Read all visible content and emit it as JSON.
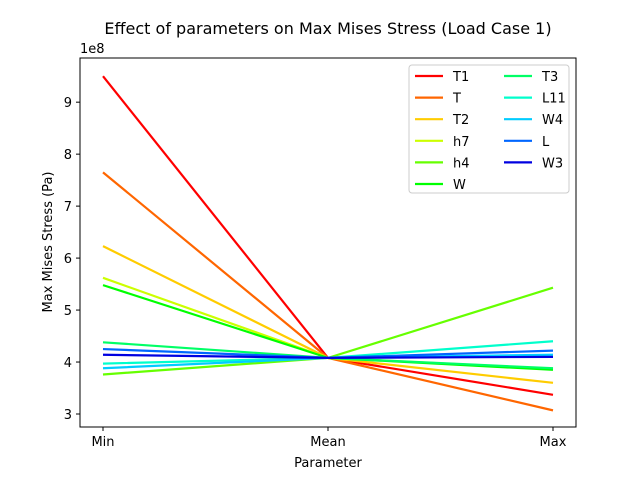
{
  "chart_data": {
    "type": "line",
    "title": "Effect of parameters on Max Mises Stress (Load Case 1)",
    "xlabel": "Parameter",
    "ylabel": "Max Mises Stress (Pa)",
    "y_scale_label": "1e8",
    "categories": [
      "Min",
      "Mean",
      "Max"
    ],
    "ylim": [
      2.75,
      9.85
    ],
    "yticks": [
      "3",
      "4",
      "5",
      "6",
      "7",
      "8",
      "9"
    ],
    "legend_position": "upper right",
    "grid": false,
    "series": [
      {
        "name": "T1",
        "color": "#ff0000",
        "values": [
          9.5,
          4.08,
          3.37
        ]
      },
      {
        "name": "T",
        "color": "#ff6600",
        "values": [
          7.65,
          4.08,
          3.07
        ]
      },
      {
        "name": "T2",
        "color": "#ffcc00",
        "values": [
          6.23,
          4.08,
          3.6
        ]
      },
      {
        "name": "h7",
        "color": "#ccff00",
        "values": [
          5.62,
          4.08,
          3.87
        ]
      },
      {
        "name": "h4",
        "color": "#66ff00",
        "values": [
          3.76,
          4.08,
          5.43
        ]
      },
      {
        "name": "W",
        "color": "#00ff00",
        "values": [
          5.48,
          4.08,
          3.85
        ]
      },
      {
        "name": "T3",
        "color": "#00ff66",
        "values": [
          4.38,
          4.08,
          3.88
        ]
      },
      {
        "name": "L11",
        "color": "#00ffcc",
        "values": [
          3.97,
          4.08,
          4.4
        ]
      },
      {
        "name": "W4",
        "color": "#00ccff",
        "values": [
          3.88,
          4.08,
          4.14
        ]
      },
      {
        "name": "L",
        "color": "#0066ff",
        "values": [
          4.25,
          4.08,
          4.22
        ]
      },
      {
        "name": "W3",
        "color": "#0000e0",
        "values": [
          4.14,
          4.08,
          4.1
        ]
      }
    ]
  }
}
